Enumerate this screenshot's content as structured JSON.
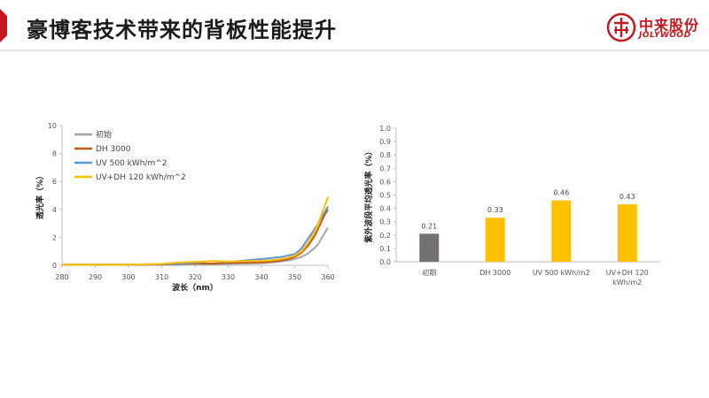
{
  "header": {
    "title": "豪博客技术带来的背板性能提升",
    "logo_cn": "中来股份",
    "logo_en": "JOLYWOOD"
  },
  "colors": {
    "accent_red": "#c8161d",
    "series_initial": "#a6a6a6",
    "series_dh": "#c55a11",
    "series_uv": "#5b9bd5",
    "series_uvdh": "#ffc000",
    "bar_initial": "#767171",
    "bar_other": "#ffc000"
  },
  "chart_data": [
    {
      "type": "line",
      "xlabel": "波长（nm）",
      "ylabel": "透光率（%）",
      "xlim": [
        280,
        360
      ],
      "ylim": [
        0,
        10
      ],
      "xticks": [
        280,
        290,
        300,
        310,
        320,
        330,
        340,
        350,
        360
      ],
      "yticks": [
        0,
        2,
        4,
        6,
        8,
        10
      ],
      "grid": false,
      "legend": "top-left",
      "x": [
        280,
        290,
        300,
        310,
        315,
        320,
        325,
        330,
        335,
        340,
        342,
        344,
        346,
        348,
        350,
        352,
        354,
        356,
        357,
        358,
        359,
        360
      ],
      "series": [
        {
          "name": "初始",
          "values": [
            0.05,
            0.05,
            0.05,
            0.05,
            0.06,
            0.07,
            0.08,
            0.1,
            0.12,
            0.15,
            0.18,
            0.22,
            0.28,
            0.35,
            0.45,
            0.6,
            0.85,
            1.25,
            1.5,
            1.9,
            2.3,
            2.7
          ]
        },
        {
          "name": "DH 3000",
          "values": [
            0.05,
            0.05,
            0.05,
            0.06,
            0.1,
            0.15,
            0.12,
            0.18,
            0.2,
            0.22,
            0.25,
            0.3,
            0.35,
            0.45,
            0.6,
            0.9,
            1.4,
            2.1,
            2.6,
            3.1,
            3.6,
            4.0
          ]
        },
        {
          "name": "UV 500 kWh/m^2",
          "values": [
            0.05,
            0.05,
            0.05,
            0.08,
            0.12,
            0.2,
            0.3,
            0.25,
            0.35,
            0.45,
            0.5,
            0.55,
            0.6,
            0.7,
            0.8,
            1.2,
            1.9,
            2.6,
            3.0,
            3.4,
            3.8,
            4.2
          ]
        },
        {
          "name": "UV+DH 120 kWh/m^2",
          "values": [
            0.05,
            0.05,
            0.05,
            0.1,
            0.2,
            0.25,
            0.3,
            0.28,
            0.3,
            0.32,
            0.35,
            0.4,
            0.45,
            0.55,
            0.7,
            1.0,
            1.6,
            2.4,
            3.0,
            3.6,
            4.2,
            4.9
          ]
        }
      ]
    },
    {
      "type": "bar",
      "ylabel": "紫外波段平均透光率（%）",
      "ylim": [
        0,
        1.0
      ],
      "yticks": [
        0.0,
        0.1,
        0.2,
        0.3,
        0.4,
        0.5,
        0.6,
        0.7,
        0.8,
        0.9,
        1.0
      ],
      "grid": false,
      "categories": [
        "初期",
        "DH 3000",
        "UV 500 kWh/m2",
        "UV+DH 120\nkWh/m2"
      ],
      "values": [
        0.21,
        0.33,
        0.46,
        0.43
      ],
      "data_labels": [
        "0.21",
        "0.33",
        "0.46",
        "0.43"
      ]
    }
  ]
}
